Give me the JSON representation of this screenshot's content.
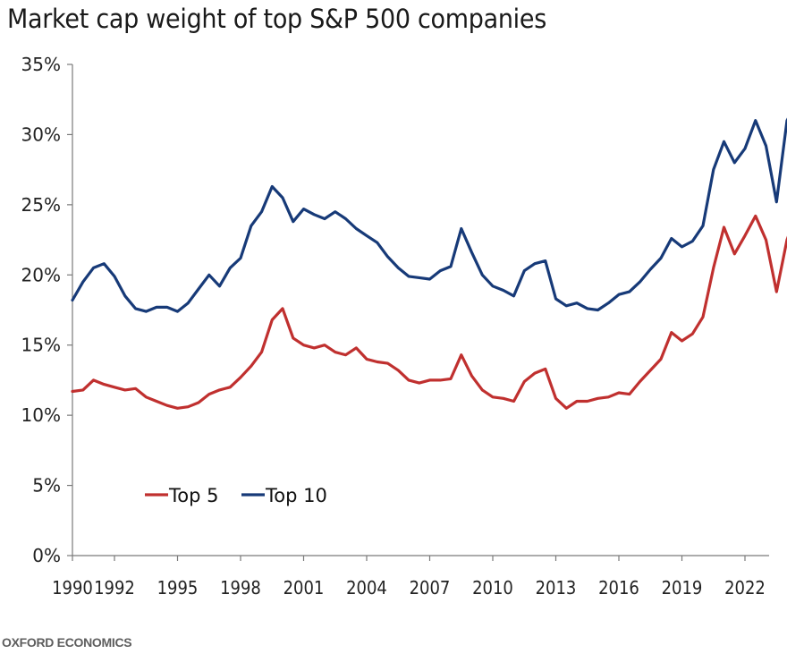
{
  "title": "Market cap weight of top S&P 500 companies",
  "source": "OXFORD ECONOMICS",
  "chart_data": {
    "type": "line",
    "title": "Market cap weight of top S&P 500 companies",
    "xlabel": "",
    "ylabel": "",
    "xlim": [
      1990,
      2024.5
    ],
    "ylim": [
      0,
      35
    ],
    "y_ticks": [
      0,
      5,
      10,
      15,
      20,
      25,
      30,
      35
    ],
    "y_tick_labels": [
      "0%",
      "5%",
      "10%",
      "15%",
      "20%",
      "25%",
      "30%",
      "35%"
    ],
    "x_ticks": [
      1990,
      1992,
      1995,
      1998,
      2001,
      2004,
      2007,
      2010,
      2013,
      2016,
      2019,
      2022
    ],
    "x_tick_labels": [
      "1990",
      "1992",
      "1995",
      "1998",
      "2001",
      "2004",
      "2007",
      "2010",
      "2013",
      "2016",
      "2019",
      "2022"
    ],
    "grid": false,
    "legend_position": "bottom-left",
    "x": [
      1990.0,
      1990.5,
      1991.0,
      1991.5,
      1992.0,
      1992.5,
      1993.0,
      1993.5,
      1994.0,
      1994.5,
      1995.0,
      1995.5,
      1996.0,
      1996.5,
      1997.0,
      1997.5,
      1998.0,
      1998.5,
      1999.0,
      1999.5,
      2000.0,
      2000.5,
      2001.0,
      2001.5,
      2002.0,
      2002.5,
      2003.0,
      2003.5,
      2004.0,
      2004.5,
      2005.0,
      2005.5,
      2006.0,
      2006.5,
      2007.0,
      2007.5,
      2008.0,
      2008.5,
      2009.0,
      2009.5,
      2010.0,
      2010.5,
      2011.0,
      2011.5,
      2012.0,
      2012.5,
      2013.0,
      2013.5,
      2014.0,
      2014.5,
      2015.0,
      2015.5,
      2016.0,
      2016.5,
      2017.0,
      2017.5,
      2018.0,
      2018.5,
      2019.0,
      2019.5,
      2020.0,
      2020.5,
      2021.0,
      2021.5,
      2022.0,
      2022.5,
      2023.0,
      2023.5,
      2024.0,
      2024.5
    ],
    "series": [
      {
        "name": "Top 5",
        "color": "#c0302f",
        "values": [
          11.7,
          11.8,
          12.5,
          12.2,
          12.0,
          11.8,
          11.9,
          11.3,
          11.0,
          10.7,
          10.5,
          10.6,
          10.9,
          11.5,
          11.8,
          12.0,
          12.7,
          13.5,
          14.5,
          16.8,
          17.6,
          15.5,
          15.0,
          14.8,
          15.0,
          14.5,
          14.3,
          14.8,
          14.0,
          13.8,
          13.7,
          13.2,
          12.5,
          12.3,
          12.5,
          12.5,
          12.6,
          14.3,
          12.8,
          11.8,
          11.3,
          11.2,
          11.0,
          12.4,
          13.0,
          13.3,
          11.2,
          10.5,
          11.0,
          11.0,
          11.2,
          11.3,
          11.6,
          11.5,
          12.4,
          13.2,
          14.0,
          15.9,
          15.3,
          15.8,
          17.0,
          20.5,
          23.4,
          21.5,
          22.8,
          24.2,
          22.5,
          18.8,
          22.5,
          24.5
        ]
      },
      {
        "name": "Top 10",
        "color": "#173a78",
        "values": [
          18.2,
          19.5,
          20.5,
          20.8,
          19.9,
          18.5,
          17.6,
          17.4,
          17.7,
          17.7,
          17.4,
          18.0,
          19.0,
          20.0,
          19.2,
          20.5,
          21.2,
          23.5,
          24.5,
          26.3,
          25.5,
          23.8,
          24.7,
          24.3,
          24.0,
          24.5,
          24.0,
          23.3,
          22.8,
          22.3,
          21.3,
          20.5,
          19.9,
          19.8,
          19.7,
          20.3,
          20.6,
          23.3,
          21.6,
          20.0,
          19.2,
          18.9,
          18.5,
          20.3,
          20.8,
          21.0,
          18.3,
          17.8,
          18.0,
          17.6,
          17.5,
          18.0,
          18.6,
          18.8,
          19.5,
          20.4,
          21.2,
          22.6,
          22.0,
          22.4,
          23.5,
          27.5,
          29.5,
          28.0,
          29.0,
          31.0,
          29.2,
          25.2,
          31.0,
          32.4
        ]
      }
    ]
  }
}
